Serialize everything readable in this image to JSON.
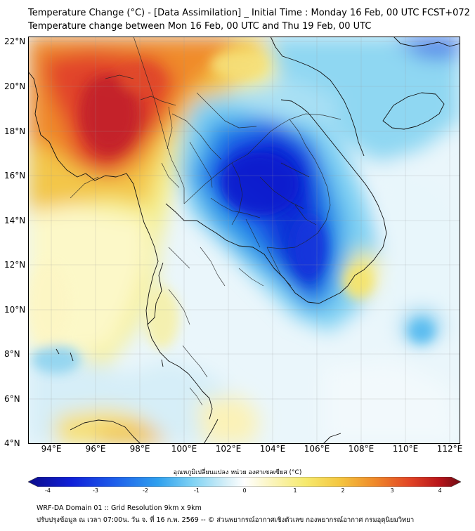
{
  "title_line1": "Temperature Change (°C) - [Data Assimilation] _ Initial Time : Monday 16 Feb, 00 UTC FCST+072",
  "title_line2": "Temperature change between Mon 16 Feb, 00 UTC and Thu 19 Feb, 00 UTC",
  "lat_labels": [
    "22°N",
    "20°N",
    "18°N",
    "16°N",
    "14°N",
    "12°N",
    "10°N",
    "8°N",
    "6°N",
    "4°N"
  ],
  "lon_labels": [
    "94°E",
    "96°E",
    "98°E",
    "100°E",
    "102°E",
    "104°E",
    "106°E",
    "108°E",
    "110°E",
    "112°E"
  ],
  "colorbar": {
    "title": "อุณหภูมิเปลี่ยนแปลง หน่วย องศาเซลเซียส (°C)",
    "ticks": [
      "-4",
      "-3",
      "-2",
      "-1",
      "0",
      "1",
      "2",
      "3",
      "4"
    ],
    "min": -4,
    "max": 4
  },
  "footer_line1": "WRF-DA Domain 01 :: Grid Resolution 9km x 9km",
  "footer_line2": "ปรับปรุงข้อมูล ณ เวลา 07:00น. วัน จ. ที่ 16 ก.พ. 2569 -- © ส่วนพยากรณ์อากาศเชิงตัวเลข กองพยากรณ์อากาศ กรมอุตุนิยมวิทยา"
}
